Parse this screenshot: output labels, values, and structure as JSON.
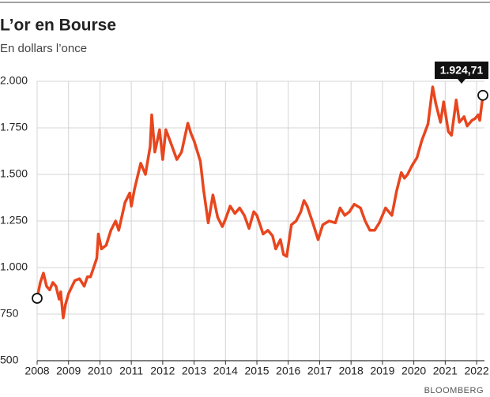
{
  "chart_data": {
    "type": "line",
    "title": "L’or en Bourse",
    "subtitle": "En dollars l’once",
    "source": "BLOOMBERG",
    "grid": true,
    "xlim": [
      2008,
      2022.25
    ],
    "ylim": [
      500,
      2000
    ],
    "xticks": [
      2008,
      2009,
      2010,
      2011,
      2012,
      2013,
      2014,
      2015,
      2016,
      2017,
      2018,
      2019,
      2020,
      2021,
      2022
    ],
    "yticks": [
      {
        "value": 500,
        "label": "500"
      },
      {
        "value": 750,
        "label": "750"
      },
      {
        "value": 1000,
        "label": "1.000"
      },
      {
        "value": 1250,
        "label": "1.250"
      },
      {
        "value": 1500,
        "label": "1.500"
      },
      {
        "value": 1750,
        "label": "1.750"
      },
      {
        "value": 2000,
        "label": "2.000"
      }
    ],
    "color": "#e8461e",
    "x": [
      2008.0,
      2008.1,
      2008.2,
      2008.3,
      2008.4,
      2008.5,
      2008.6,
      2008.7,
      2008.75,
      2008.83,
      2008.9,
      2009.0,
      2009.2,
      2009.35,
      2009.5,
      2009.6,
      2009.7,
      2009.8,
      2009.9,
      2009.95,
      2010.05,
      2010.2,
      2010.35,
      2010.5,
      2010.6,
      2010.8,
      2010.95,
      2011.0,
      2011.1,
      2011.3,
      2011.45,
      2011.6,
      2011.65,
      2011.75,
      2011.9,
      2012.0,
      2012.1,
      2012.3,
      2012.45,
      2012.6,
      2012.8,
      2012.9,
      2013.0,
      2013.2,
      2013.3,
      2013.45,
      2013.6,
      2013.75,
      2013.9,
      2014.0,
      2014.15,
      2014.3,
      2014.45,
      2014.6,
      2014.75,
      2014.9,
      2015.0,
      2015.2,
      2015.35,
      2015.5,
      2015.6,
      2015.75,
      2015.85,
      2015.95,
      2016.1,
      2016.25,
      2016.4,
      2016.5,
      2016.6,
      2016.8,
      2016.95,
      2017.1,
      2017.3,
      2017.5,
      2017.65,
      2017.8,
      2017.95,
      2018.1,
      2018.3,
      2018.45,
      2018.6,
      2018.75,
      2018.9,
      2019.1,
      2019.3,
      2019.45,
      2019.6,
      2019.7,
      2019.8,
      2019.95,
      2020.1,
      2020.25,
      2020.45,
      2020.6,
      2020.7,
      2020.85,
      2020.95,
      2021.1,
      2021.2,
      2021.35,
      2021.45,
      2021.6,
      2021.7,
      2021.85,
      2021.95,
      2022.05,
      2022.1,
      2022.2
    ],
    "values": [
      835,
      920,
      970,
      900,
      880,
      920,
      900,
      830,
      870,
      730,
      800,
      860,
      930,
      940,
      900,
      950,
      950,
      1000,
      1050,
      1180,
      1100,
      1120,
      1200,
      1250,
      1200,
      1350,
      1400,
      1330,
      1420,
      1560,
      1500,
      1650,
      1820,
      1620,
      1740,
      1580,
      1740,
      1650,
      1580,
      1620,
      1775,
      1720,
      1680,
      1570,
      1420,
      1240,
      1390,
      1270,
      1220,
      1260,
      1330,
      1290,
      1320,
      1280,
      1210,
      1300,
      1280,
      1180,
      1200,
      1170,
      1100,
      1150,
      1070,
      1060,
      1230,
      1250,
      1300,
      1360,
      1330,
      1230,
      1150,
      1230,
      1250,
      1240,
      1320,
      1280,
      1300,
      1340,
      1320,
      1250,
      1200,
      1200,
      1240,
      1320,
      1280,
      1410,
      1510,
      1480,
      1500,
      1550,
      1590,
      1680,
      1770,
      1970,
      1880,
      1780,
      1890,
      1730,
      1710,
      1900,
      1780,
      1810,
      1760,
      1790,
      1800,
      1820,
      1790,
      1924.71
    ],
    "value_labels": [
      null,
      null,
      null,
      null,
      null,
      null,
      null,
      null,
      null,
      null,
      null,
      null,
      null,
      null,
      null,
      null,
      null,
      null,
      null,
      null,
      null,
      null,
      null,
      null,
      null,
      null,
      null,
      null,
      null,
      null,
      null,
      null,
      null,
      null,
      null,
      null,
      null,
      null,
      null,
      null,
      null,
      null,
      null,
      null,
      null,
      null,
      null,
      null,
      null,
      null,
      null,
      null,
      null,
      null,
      null,
      null,
      null,
      null,
      null,
      null,
      null,
      null,
      null,
      null,
      null,
      null,
      null,
      null,
      null,
      null,
      null,
      null,
      null,
      null,
      null,
      null,
      null,
      null,
      null,
      null,
      null,
      null,
      null,
      null,
      null,
      null,
      null,
      null,
      null,
      null,
      null,
      null,
      null,
      null,
      null,
      null,
      null,
      null,
      null,
      null,
      null,
      null,
      null,
      null,
      null,
      null,
      null,
      "1.924,71"
    ]
  }
}
